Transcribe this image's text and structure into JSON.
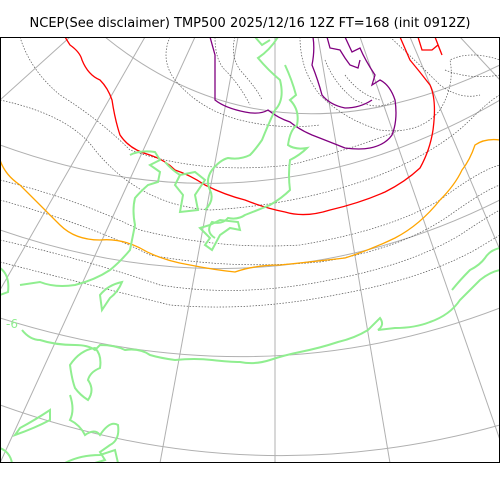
{
  "map": {
    "title": "NCEP(See disclaimer) TMP500 2025/12/16 12Z FT=168 (init 0912Z)",
    "colors": {
      "coastline": "#90ee90",
      "contour": "#555555",
      "graticule": "#b0b0b0",
      "isotherm_orange": "#ffa500",
      "isotherm_red": "#ff0000",
      "isotherm_purple": "#800080"
    },
    "contour_label": "-6"
  }
}
